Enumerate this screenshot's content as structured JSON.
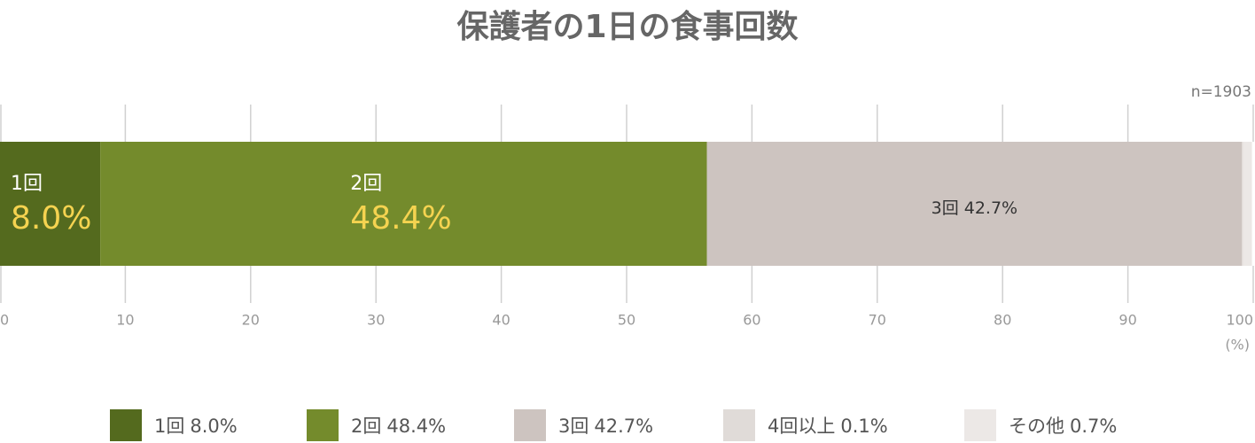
{
  "chart_data": {
    "type": "bar",
    "orientation": "horizontal",
    "stacked": true,
    "title": "保護者の1日の食事回数",
    "annotation": "n=1903",
    "x_label": "(%)",
    "categories": [
      null
    ],
    "xlim": [
      0,
      100
    ],
    "xticks": [
      0,
      10,
      20,
      30,
      40,
      50,
      60,
      70,
      80,
      90,
      100
    ],
    "series": [
      {
        "name": "1回",
        "color": "#546a1e",
        "values": [
          8.0
        ],
        "value_labels": [
          "8.0%"
        ],
        "name_color": "#ffffff",
        "label_color": "#f5d350"
      },
      {
        "name": "2回",
        "color": "#748b2c",
        "values": [
          48.4
        ],
        "value_labels": [
          "48.4%"
        ],
        "name_color": "#ffffff",
        "label_color": "#f5d350"
      },
      {
        "name": "3回",
        "color": "#cdc4c0",
        "values": [
          42.7
        ],
        "value_labels": [
          "42.7%"
        ],
        "label_color": "#333333"
      },
      {
        "name": "4回以上",
        "color": "#e0dbd8",
        "values": [
          0.1
        ],
        "value_labels": [
          "0.1%"
        ]
      },
      {
        "name": "その他",
        "color": "#ece8e6",
        "values": [
          0.7
        ],
        "value_labels": [
          "0.7%"
        ]
      }
    ]
  }
}
